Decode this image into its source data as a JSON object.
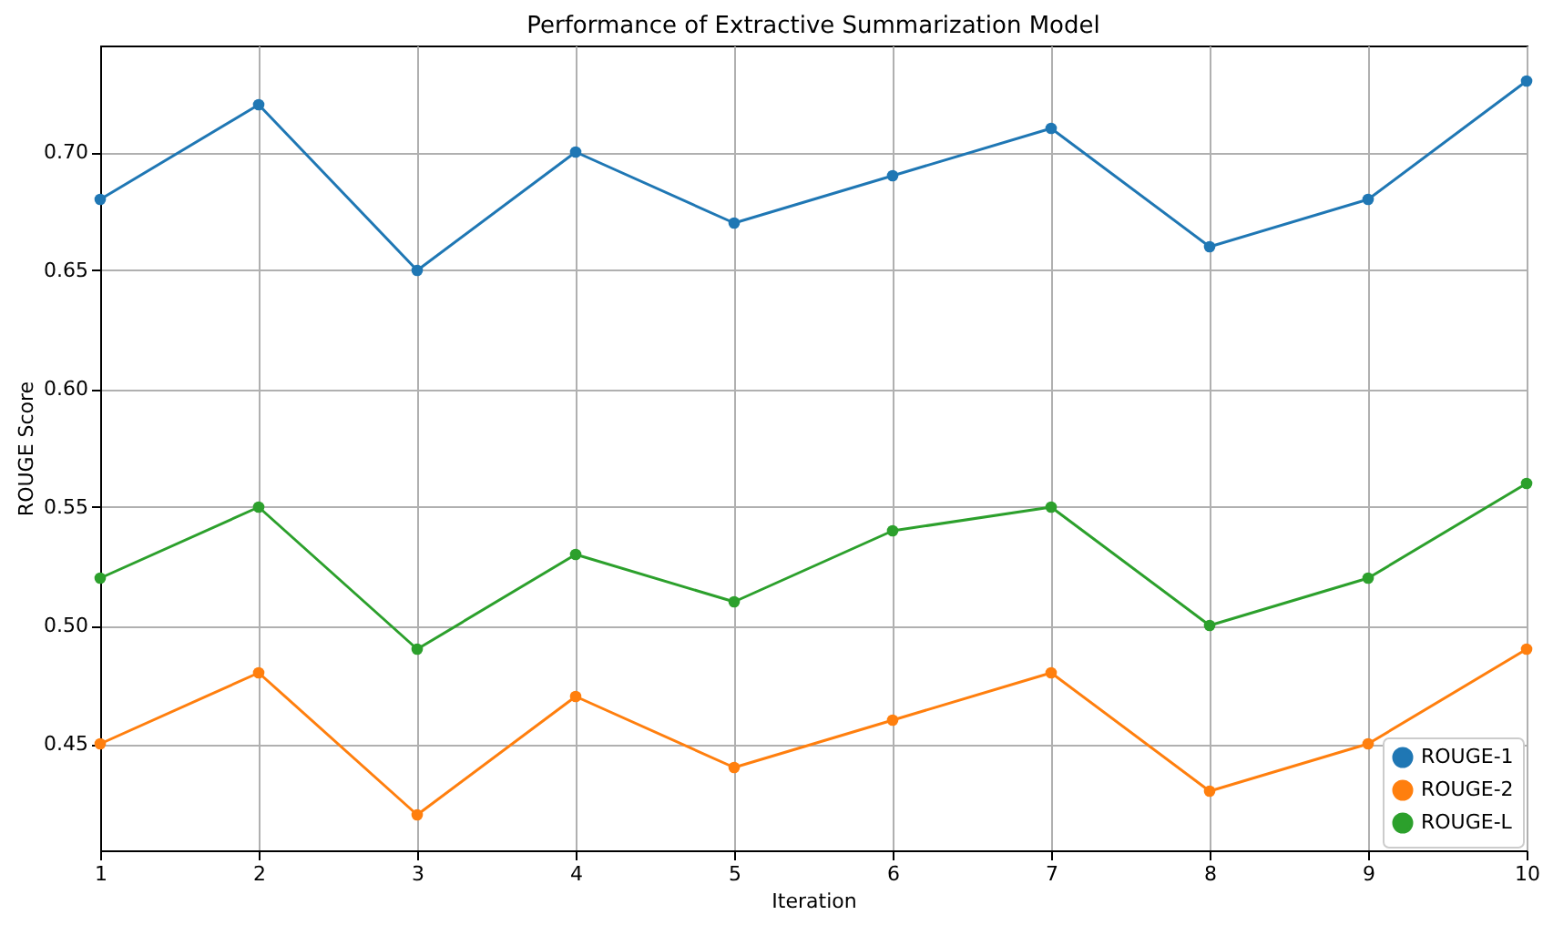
{
  "chart_data": {
    "type": "line",
    "title": "Performance of Extractive Summarization Model",
    "xlabel": "Iteration",
    "ylabel": "ROUGE Score",
    "x": [
      1,
      2,
      3,
      4,
      5,
      6,
      7,
      8,
      9,
      10
    ],
    "series": [
      {
        "name": "ROUGE-1",
        "color": "#1f77b4",
        "values": [
          0.68,
          0.72,
          0.65,
          0.7,
          0.67,
          0.69,
          0.71,
          0.66,
          0.68,
          0.73
        ]
      },
      {
        "name": "ROUGE-2",
        "color": "#ff7f0e",
        "values": [
          0.45,
          0.48,
          0.42,
          0.47,
          0.44,
          0.46,
          0.48,
          0.43,
          0.45,
          0.49
        ]
      },
      {
        "name": "ROUGE-L",
        "color": "#2ca02c",
        "values": [
          0.52,
          0.55,
          0.49,
          0.53,
          0.51,
          0.54,
          0.55,
          0.5,
          0.52,
          0.56
        ]
      }
    ],
    "xlim": [
      1,
      10
    ],
    "xticks": [
      1,
      2,
      3,
      4,
      5,
      6,
      7,
      8,
      9,
      10
    ],
    "ylim": [
      0.405,
      0.745
    ],
    "yticks": [
      {
        "value": 0.45,
        "label": "0.45"
      },
      {
        "value": 0.5,
        "label": "0.50"
      },
      {
        "value": 0.55,
        "label": "0.55"
      },
      {
        "value": 0.6,
        "label": "0.60"
      },
      {
        "value": 0.65,
        "label": "0.65"
      },
      {
        "value": 0.7,
        "label": "0.70"
      }
    ],
    "grid": true,
    "legend": "bottom right",
    "marker": "circle",
    "line_style": "solid"
  }
}
